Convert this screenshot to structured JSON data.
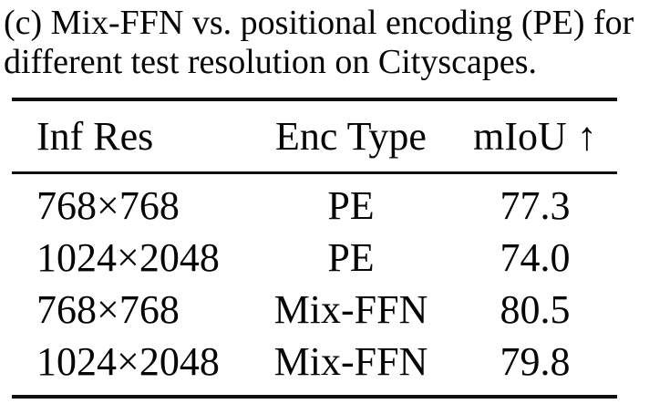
{
  "caption": "(c) Mix-FFN vs. positional encoding (PE) for different test resolution on Cityscapes.",
  "table": {
    "headers": [
      "Inf Res",
      "Enc Type",
      "mIoU ↑"
    ],
    "rows": [
      [
        "768×768",
        "PE",
        "77.3"
      ],
      [
        "1024×2048",
        "PE",
        "74.0"
      ],
      [
        "768×768",
        "Mix-FFN",
        "80.5"
      ],
      [
        "1024×2048",
        "Mix-FFN",
        "79.8"
      ]
    ]
  },
  "colors": {
    "text": "#050505",
    "rule": "#101010",
    "background": "#ffffff"
  }
}
